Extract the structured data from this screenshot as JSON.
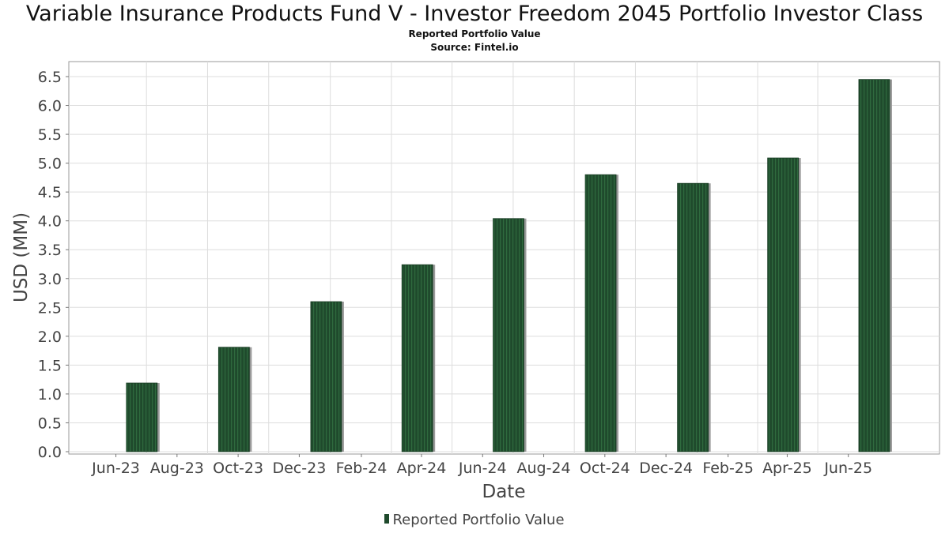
{
  "chart_data": {
    "type": "bar",
    "title": "Variable Insurance Products Fund V - Investor Freedom 2045 Portfolio Investor Class",
    "subtitle": "Reported Portfolio Value",
    "source": "Source: Fintel.io",
    "xlabel": "Date",
    "ylabel": "USD (MM)",
    "ylim": [
      0,
      6.7
    ],
    "yticks": [
      0.0,
      0.5,
      1.0,
      1.5,
      2.0,
      2.5,
      3.0,
      3.5,
      4.0,
      4.5,
      5.0,
      5.5,
      6.0,
      6.5
    ],
    "xlim": [
      "2023-04-15",
      "2025-08-31"
    ],
    "xticks": [
      {
        "date": "2023-06-01",
        "label": "Jun-23"
      },
      {
        "date": "2023-08-01",
        "label": "Aug-23"
      },
      {
        "date": "2023-10-01",
        "label": "Oct-23"
      },
      {
        "date": "2023-12-01",
        "label": "Dec-23"
      },
      {
        "date": "2024-02-01",
        "label": "Feb-24"
      },
      {
        "date": "2024-04-01",
        "label": "Apr-24"
      },
      {
        "date": "2024-06-01",
        "label": "Jun-24"
      },
      {
        "date": "2024-08-01",
        "label": "Aug-24"
      },
      {
        "date": "2024-10-01",
        "label": "Oct-24"
      },
      {
        "date": "2024-12-01",
        "label": "Dec-24"
      },
      {
        "date": "2025-02-01",
        "label": "Feb-25"
      },
      {
        "date": "2025-04-01",
        "label": "Apr-25"
      },
      {
        "date": "2025-06-01",
        "label": "Jun-25"
      }
    ],
    "grid": true,
    "legend_position": "bottom",
    "colors": {
      "bar": "#1f4a2c",
      "bar_stripe": "#2f6a3e",
      "bar_shadow": "#9a9a9a",
      "grid": "#dddddd"
    },
    "series": [
      {
        "name": "Reported Portfolio Value",
        "points": [
          {
            "date": "2023-06-30",
            "value": 1.19
          },
          {
            "date": "2023-09-30",
            "value": 1.81
          },
          {
            "date": "2023-12-31",
            "value": 2.6
          },
          {
            "date": "2024-03-31",
            "value": 3.24
          },
          {
            "date": "2024-06-30",
            "value": 4.04
          },
          {
            "date": "2024-09-30",
            "value": 4.8
          },
          {
            "date": "2024-12-31",
            "value": 4.65
          },
          {
            "date": "2025-03-31",
            "value": 5.09
          },
          {
            "date": "2025-06-30",
            "value": 6.45
          }
        ]
      }
    ]
  }
}
